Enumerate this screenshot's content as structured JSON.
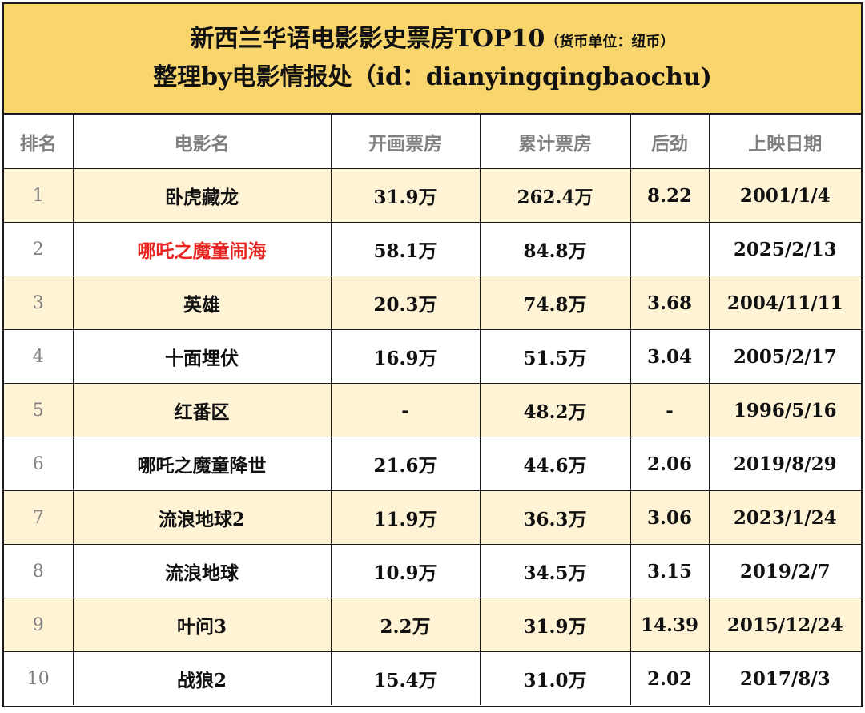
{
  "title": {
    "line1": "新西兰华语电影影史票房TOP10",
    "line1_note": "（货币单位：纽币）",
    "line2": "整理by电影情报处（id：dianyingqingbaochu)"
  },
  "columns": [
    "排名",
    "电影名",
    "开画票房",
    "累计票房",
    "后劲",
    "上映日期"
  ],
  "rows": [
    {
      "rank": "1",
      "name": "卧虎藏龙",
      "opening": "31.9万",
      "total": "262.4万",
      "multiplier": "8.22",
      "date": "2001/1/4"
    },
    {
      "rank": "2",
      "name": "哪吒之魔童闹海",
      "opening": "58.1万",
      "total": "84.8万",
      "multiplier": "",
      "date": "2025/2/13"
    },
    {
      "rank": "3",
      "name": "英雄",
      "opening": "20.3万",
      "total": "74.8万",
      "multiplier": "3.68",
      "date": "2004/11/11"
    },
    {
      "rank": "4",
      "name": "十面埋伏",
      "opening": "16.9万",
      "total": "51.5万",
      "multiplier": "3.04",
      "date": "2005/2/17"
    },
    {
      "rank": "5",
      "name": "红番区",
      "opening": "-",
      "total": "48.2万",
      "multiplier": "-",
      "date": "1996/5/16"
    },
    {
      "rank": "6",
      "name": "哪吒之魔童降世",
      "opening": "21.6万",
      "total": "44.6万",
      "multiplier": "2.06",
      "date": "2019/8/29"
    },
    {
      "rank": "7",
      "name": "流浪地球2",
      "opening": "11.9万",
      "total": "36.3万",
      "multiplier": "3.06",
      "date": "2023/1/24"
    },
    {
      "rank": "8",
      "name": "流浪地球",
      "opening": "10.9万",
      "total": "34.5万",
      "multiplier": "3.15",
      "date": "2019/2/7"
    },
    {
      "rank": "9",
      "name": "叶问3",
      "opening": "2.2万",
      "total": "31.9万",
      "multiplier": "14.39",
      "date": "2015/12/24"
    },
    {
      "rank": "10",
      "name": "战狼2",
      "opening": "15.4万",
      "total": "31.0万",
      "multiplier": "2.02",
      "date": "2017/8/3"
    }
  ],
  "colors": {
    "header_bg": "#f8d66d",
    "alt_row_bg": "#fff3d6",
    "highlight_text": "#e8231f",
    "muted_text": "#808080"
  },
  "highlight_row_rank": "2"
}
